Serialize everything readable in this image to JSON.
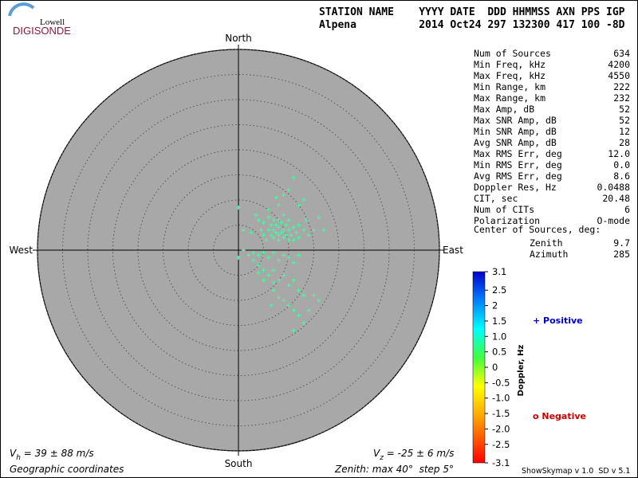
{
  "logo": {
    "line1": "Lowell",
    "line2": "DIGISONDE"
  },
  "header": {
    "line1": "STATION NAME    YYYY DATE  DDD HHMMSS AXN PPS IGP",
    "line2": "Alpena          2014 Oct24 297 132300 417 100 -8D"
  },
  "stats": {
    "rows": [
      {
        "label": "Num of Sources",
        "value": "634"
      },
      {
        "label": "Min Freq, kHz",
        "value": "4200"
      },
      {
        "label": "Max Freq, kHz",
        "value": "4550"
      },
      {
        "label": "Min Range, km",
        "value": "222"
      },
      {
        "label": "Max Range, km",
        "value": "232"
      },
      {
        "label": "Max Amp, dB",
        "value": "52"
      },
      {
        "label": "Max SNR Amp, dB",
        "value": "52"
      },
      {
        "label": "Min SNR Amp, dB",
        "value": "12"
      },
      {
        "label": "Avg SNR Amp, dB",
        "value": "28"
      },
      {
        "label": "Max RMS Err, deg",
        "value": "12.0"
      },
      {
        "label": "Min RMS Err, deg",
        "value": "0.0"
      },
      {
        "label": "Avg RMS Err, deg",
        "value": "8.6"
      },
      {
        "label": "Doppler Res, Hz",
        "value": "0.0488"
      },
      {
        "label": "CIT, sec",
        "value": "20.48"
      },
      {
        "label": "Num of CITs",
        "value": "6"
      },
      {
        "label": "Polarization",
        "value": "O-mode"
      }
    ],
    "center_title": "Center of Sources, deg:",
    "center_rows": [
      {
        "label": "Zenith",
        "value": "9.7"
      },
      {
        "label": "Azimuth",
        "value": "285"
      }
    ]
  },
  "chart_data": {
    "type": "skymap",
    "directions": {
      "north": "North",
      "south": "South",
      "west": "West",
      "east": "East"
    },
    "rlim": [
      0,
      40
    ],
    "rticks": [
      5,
      10,
      15,
      20,
      25,
      30,
      35,
      40
    ],
    "series": [
      {
        "color": "#40ffa0",
        "x": [
          0,
          1,
          2.5,
          3.5,
          4,
          4.5,
          5,
          5,
          5.5,
          6,
          6,
          6.5,
          6.5,
          7,
          7,
          7,
          7.5,
          7.5,
          8,
          8,
          8,
          8,
          8.5,
          8.5,
          9,
          9,
          9,
          9.5,
          9.5,
          10,
          10,
          10,
          10.5,
          11,
          11,
          11.5,
          12,
          12,
          13,
          13.5,
          14,
          15,
          16,
          17,
          8,
          9,
          10,
          11,
          7.5,
          6,
          12,
          13,
          3,
          2,
          1,
          4,
          5,
          6,
          7,
          8,
          9,
          10,
          11,
          12,
          4,
          5,
          6,
          7,
          8,
          9,
          10,
          11,
          12,
          13,
          7,
          8,
          9,
          10,
          11,
          12,
          14,
          6.5,
          13,
          11,
          7,
          15,
          16,
          5,
          4,
          3,
          0
        ],
        "y": [
          8.5,
          4,
          3.5,
          7,
          6,
          4,
          3,
          5.5,
          2,
          4,
          6.5,
          3,
          5,
          2.5,
          4,
          6,
          3.5,
          5,
          2,
          3,
          4.5,
          6,
          3.5,
          5.5,
          2.5,
          4,
          7,
          3,
          5,
          2,
          4,
          6,
          3,
          4.5,
          2,
          3.5,
          5,
          2.5,
          4,
          6,
          3,
          4,
          6.5,
          4,
          9,
          11,
          12,
          14.5,
          10.5,
          8,
          9,
          10,
          -0.5,
          -1,
          0,
          -1,
          -0.5,
          -1.5,
          -0.5,
          -2,
          -1,
          -1.5,
          -2.5,
          -1,
          -3,
          -4,
          -5,
          -4,
          -6,
          -5,
          -7,
          -6,
          -8,
          -9,
          -8,
          -9.5,
          -10,
          -11,
          -12,
          -13,
          -12,
          -11,
          -14.5,
          -16,
          -6.5,
          -9,
          -10,
          -6,
          -4.5,
          -2,
          -1.5
        ]
      }
    ],
    "colorbar": {
      "title": "Doppler, Hz",
      "clim": [
        -3.1,
        3.1
      ],
      "ticks": [
        3.1,
        2.5,
        2,
        1.5,
        {
          "value": 1,
          "label": "1.0"
        },
        0.5,
        0,
        -0.5,
        {
          "value": -1,
          "label": "-1.0"
        },
        -1.5,
        {
          "value": -2,
          "label": "-2.0"
        },
        -2.5,
        -3.1
      ]
    },
    "legend": {
      "positive": "+ Positive",
      "negative": "o Negative"
    }
  },
  "footer": {
    "vh": {
      "symbol": "V",
      "sub": "h",
      "text": " = 39 ± 88 m/s"
    },
    "vz": {
      "symbol": "V",
      "sub": "z",
      "text": " = -25 ± 6 m/s"
    },
    "coords": "Geographic coordinates",
    "zenith": "Zenith: max 40°  step 5°",
    "version": "ShowSkymap v 1.0  SD v 5.1"
  }
}
